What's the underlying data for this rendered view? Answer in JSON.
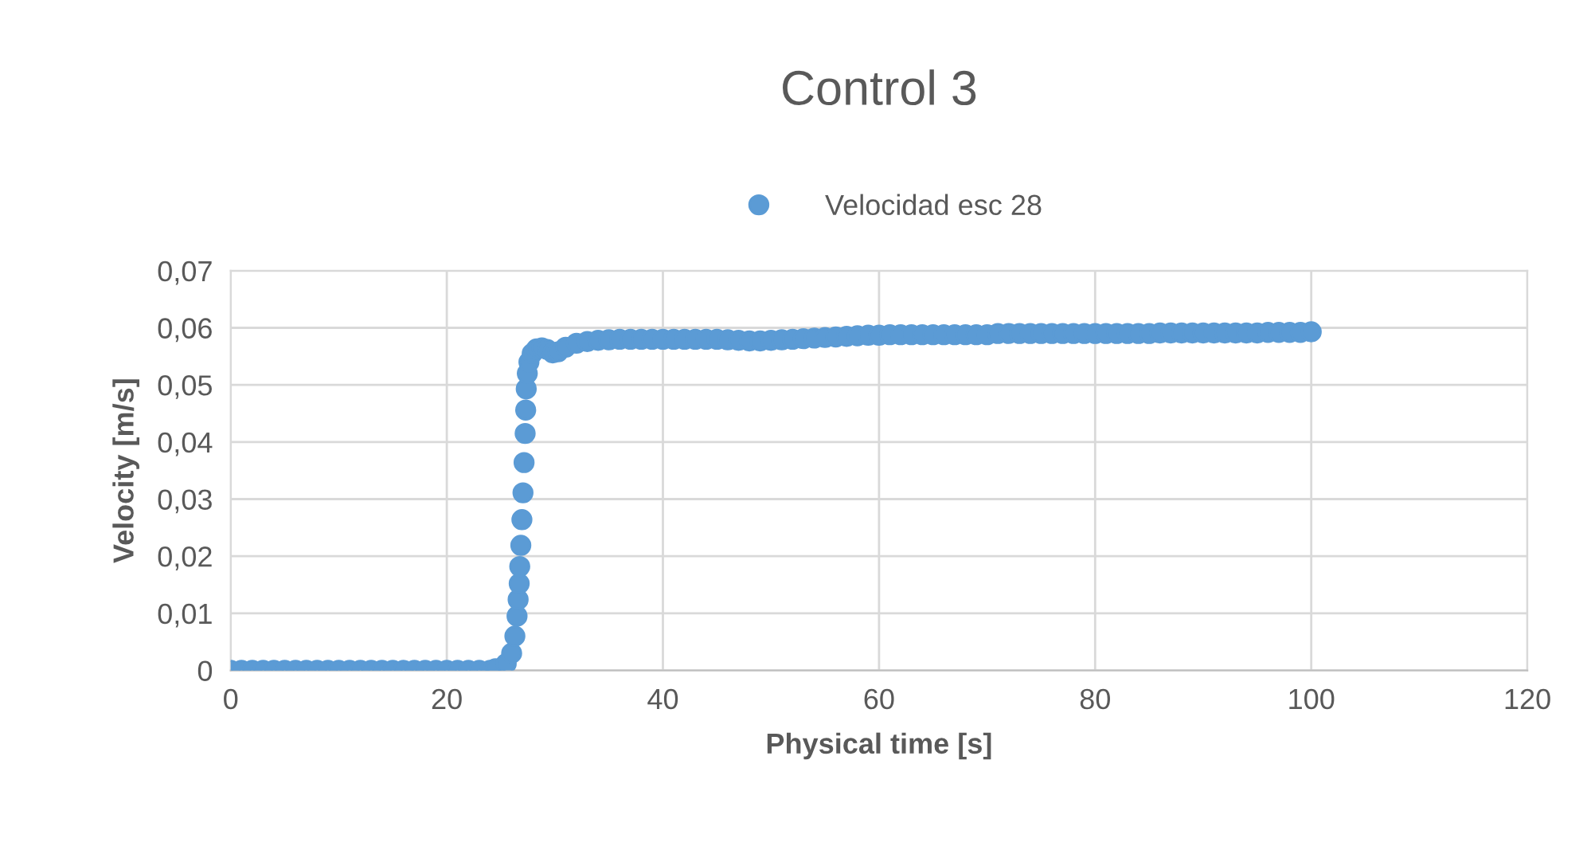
{
  "chart_data": {
    "type": "scatter",
    "title": "Control 3",
    "xlabel": "Physical time [s]",
    "ylabel": "Velocity [m/s]",
    "xlim": [
      0,
      120
    ],
    "xticks": [
      0,
      20,
      40,
      60,
      80,
      100,
      120
    ],
    "ylim": [
      0,
      0.07
    ],
    "yticks": [
      {
        "value": 0,
        "label": "0"
      },
      {
        "value": 0.01,
        "label": "0,01"
      },
      {
        "value": 0.02,
        "label": "0,02"
      },
      {
        "value": 0.03,
        "label": "0,03"
      },
      {
        "value": 0.04,
        "label": "0,04"
      },
      {
        "value": 0.05,
        "label": "0,05"
      },
      {
        "value": 0.06,
        "label": "0,06"
      },
      {
        "value": 0.07,
        "label": "0,07"
      }
    ],
    "grid": true,
    "legend": "top",
    "marker": "circle",
    "series": [
      {
        "name": "Velocidad esc 28",
        "color": "#5b9bd5",
        "x": [
          0,
          1,
          2,
          3,
          4,
          5,
          6,
          7,
          8,
          9,
          10,
          11,
          12,
          13,
          14,
          15,
          16,
          17,
          18,
          19,
          20,
          21,
          22,
          23,
          24,
          24.5,
          25.5,
          26,
          26.3,
          26.5,
          26.6,
          26.7,
          26.75,
          26.85,
          26.95,
          27.05,
          27.15,
          27.25,
          27.3,
          27.35,
          27.45,
          27.6,
          27.9,
          28.3,
          28.8,
          29.3,
          29.8,
          30.3,
          31,
          32,
          33,
          34,
          35,
          36,
          37,
          38,
          39,
          40,
          41,
          42,
          43,
          44,
          45,
          46,
          47,
          48,
          49,
          50,
          51,
          52,
          53,
          54,
          55,
          56,
          57,
          58,
          59,
          60,
          61,
          62,
          63,
          64,
          65,
          66,
          67,
          68,
          69,
          70,
          71,
          72,
          73,
          74,
          75,
          76,
          77,
          78,
          79,
          80,
          81,
          82,
          83,
          84,
          85,
          86,
          87,
          88,
          89,
          90,
          91,
          92,
          93,
          94,
          95,
          96,
          97,
          98,
          99,
          100
        ],
        "values": [
          0,
          0,
          0,
          0,
          0,
          0,
          0,
          0,
          0,
          0,
          0,
          0,
          0,
          0,
          0,
          0,
          0,
          0,
          0,
          0,
          0,
          0,
          0,
          0,
          0,
          0.0003,
          0.0012,
          0.003,
          0.006,
          0.0095,
          0.0124,
          0.0152,
          0.0182,
          0.0219,
          0.0264,
          0.0311,
          0.0364,
          0.0415,
          0.0456,
          0.0493,
          0.052,
          0.054,
          0.0555,
          0.0563,
          0.0565,
          0.0562,
          0.0556,
          0.0558,
          0.0566,
          0.0573,
          0.0576,
          0.0578,
          0.0579,
          0.058,
          0.058,
          0.058,
          0.058,
          0.058,
          0.058,
          0.058,
          0.058,
          0.058,
          0.058,
          0.0579,
          0.0578,
          0.0577,
          0.0577,
          0.0578,
          0.0579,
          0.058,
          0.0581,
          0.0582,
          0.0583,
          0.0584,
          0.0585,
          0.0586,
          0.0587,
          0.0587,
          0.0588,
          0.0588,
          0.0588,
          0.0588,
          0.0588,
          0.0588,
          0.0588,
          0.0588,
          0.0588,
          0.0588,
          0.059,
          0.059,
          0.059,
          0.059,
          0.059,
          0.059,
          0.059,
          0.059,
          0.059,
          0.059,
          0.059,
          0.059,
          0.059,
          0.059,
          0.059,
          0.0591,
          0.0591,
          0.0591,
          0.0591,
          0.0591,
          0.0591,
          0.0591,
          0.0591,
          0.0591,
          0.0591,
          0.0592,
          0.0592,
          0.0592,
          0.0592,
          0.0593
        ]
      }
    ]
  }
}
